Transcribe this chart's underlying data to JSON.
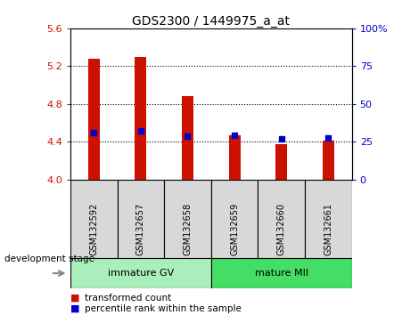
{
  "title": "GDS2300 / 1449975_a_at",
  "samples": [
    "GSM132592",
    "GSM132657",
    "GSM132658",
    "GSM132659",
    "GSM132660",
    "GSM132661"
  ],
  "bar_values": [
    5.28,
    5.3,
    4.88,
    4.47,
    4.37,
    4.41
  ],
  "bar_bottom": 4.0,
  "percentile_values": [
    4.5,
    4.52,
    4.46,
    4.47,
    4.435,
    4.445
  ],
  "bar_color": "#cc1100",
  "percentile_color": "#0000cc",
  "ylim": [
    4.0,
    5.6
  ],
  "yticks": [
    4.0,
    4.4,
    4.8,
    5.2,
    5.6
  ],
  "right_yticks": [
    0,
    25,
    50,
    75,
    100
  ],
  "right_ylabels": [
    "0",
    "25",
    "50",
    "75",
    "100%"
  ],
  "groups": [
    {
      "label": "immature GV",
      "indices": [
        0,
        1,
        2
      ],
      "color": "#aaeebb"
    },
    {
      "label": "mature MII",
      "indices": [
        3,
        4,
        5
      ],
      "color": "#44dd66"
    }
  ],
  "stage_label": "development stage",
  "legend_bar_label": "transformed count",
  "legend_pct_label": "percentile rank within the sample",
  "sample_box_color": "#d8d8d8",
  "plot_bg": "#ffffff",
  "left_label_color": "#cc1100",
  "right_label_color": "#0000cc"
}
